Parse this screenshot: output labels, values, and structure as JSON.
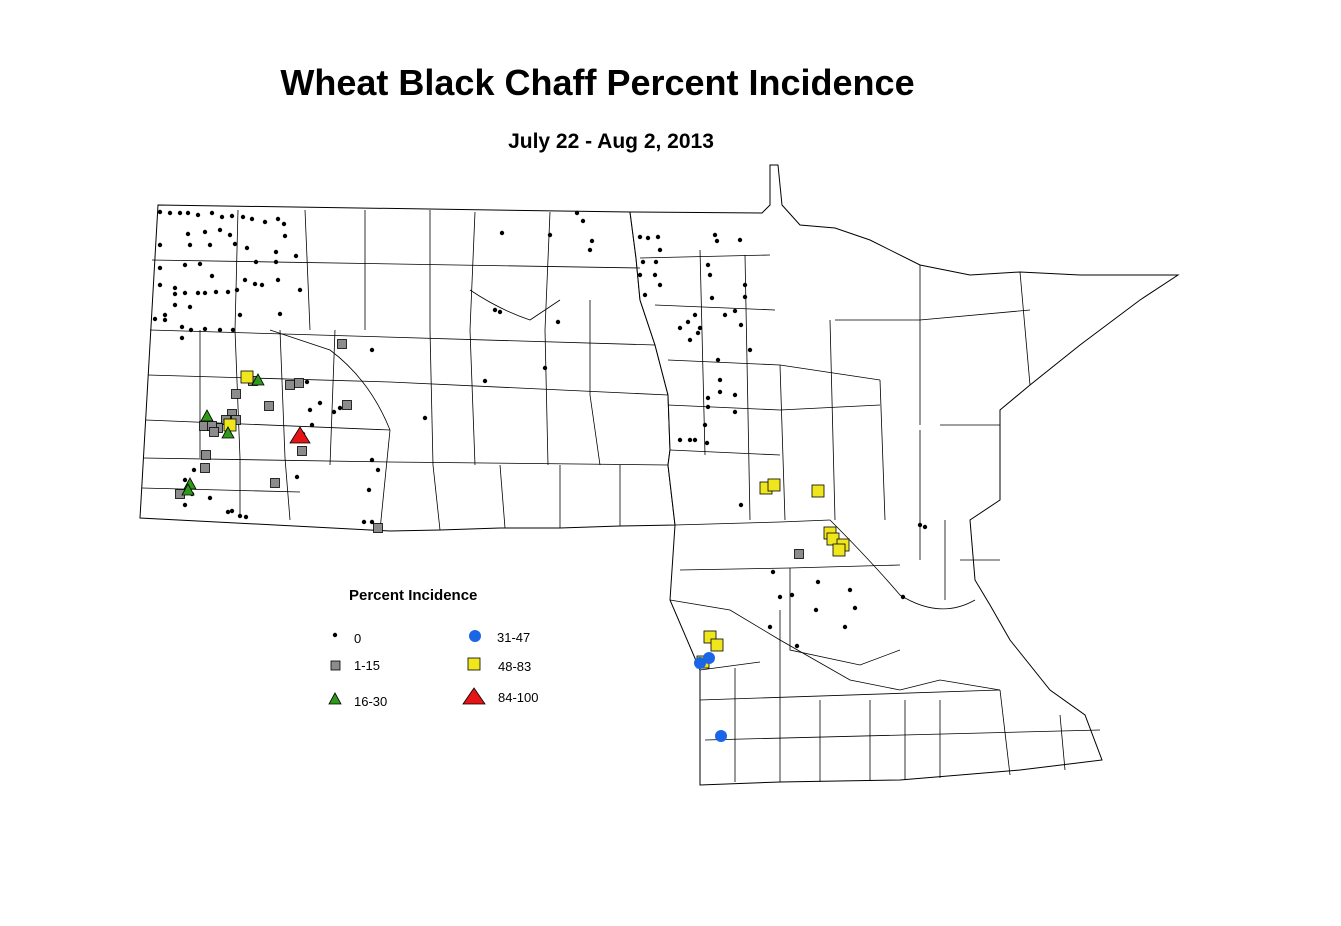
{
  "title": "Wheat Black Chaff Percent Incidence",
  "subtitle": "July 22 - Aug 2, 2013",
  "legend": {
    "title": "Percent Incidence",
    "classes": [
      {
        "label": "0",
        "symbol": "dot",
        "color": "#000000"
      },
      {
        "label": "1-15",
        "symbol": "square",
        "color": "#8c8c8c"
      },
      {
        "label": "16-30",
        "symbol": "triangle",
        "color": "#2e9a1a"
      },
      {
        "label": "31-47",
        "symbol": "circle",
        "color": "#1a66e6"
      },
      {
        "label": "48-83",
        "symbol": "square",
        "color": "#f0e61e"
      },
      {
        "label": "84-100",
        "symbol": "triangle",
        "color": "#e61414"
      }
    ]
  },
  "colors": {
    "outline": "#000000",
    "background": "#ffffff"
  }
}
